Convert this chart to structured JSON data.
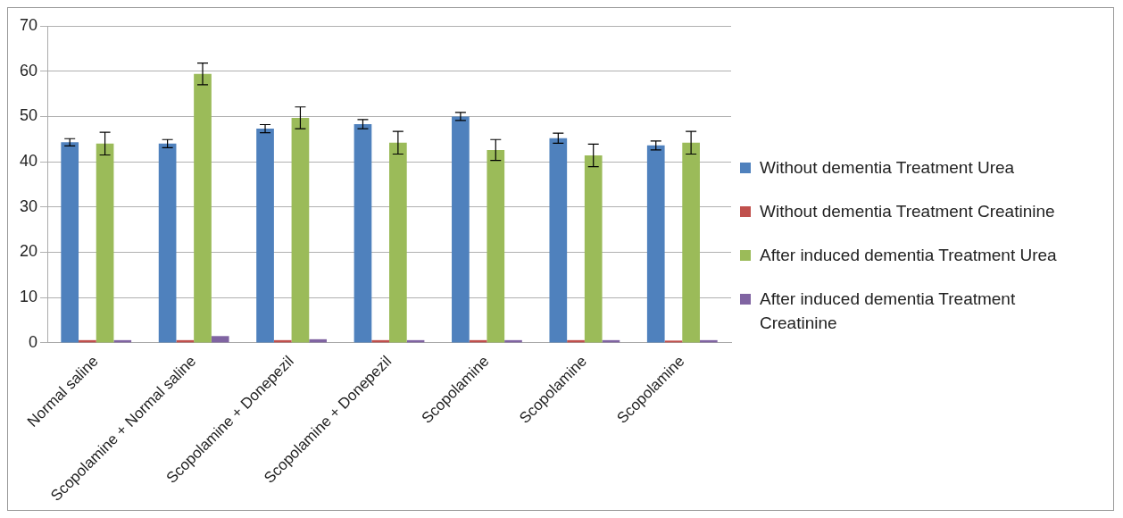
{
  "chart_data": {
    "type": "bar",
    "categories": [
      "Normal saline",
      "Scopolamine + Normal saline",
      "Scopolamine + Donepezil",
      "Scopolamine + Donepezil",
      "Scopolamine",
      "Scopolamine",
      "Scopolamine"
    ],
    "series": [
      {
        "name": "Without dementia Treatment Urea",
        "color": "#4f81bd",
        "values": [
          44.3,
          44.0,
          47.3,
          48.3,
          50.0,
          45.2,
          43.6
        ],
        "errors": [
          0.8,
          0.9,
          0.9,
          1.0,
          0.9,
          1.1,
          1.0
        ]
      },
      {
        "name": "Without dementia Treatment Creatinine",
        "color": "#c0504d",
        "values": [
          0.6,
          0.6,
          0.6,
          0.6,
          0.6,
          0.6,
          0.5
        ]
      },
      {
        "name": "After induced dementia Treatment Urea",
        "color": "#9bbb59",
        "values": [
          44.0,
          59.4,
          49.7,
          44.2,
          42.6,
          41.4,
          44.2
        ],
        "errors": [
          2.5,
          2.4,
          2.4,
          2.5,
          2.3,
          2.5,
          2.5
        ]
      },
      {
        "name": "After induced dementia Treatment Creatinine",
        "color": "#8064a2",
        "values": [
          0.6,
          1.5,
          0.8,
          0.6,
          0.6,
          0.6,
          0.6
        ]
      }
    ],
    "ylim": [
      0,
      70
    ],
    "yticks": [
      0,
      10,
      20,
      30,
      40,
      50,
      60,
      70
    ],
    "grid": "y",
    "legend": "right"
  }
}
